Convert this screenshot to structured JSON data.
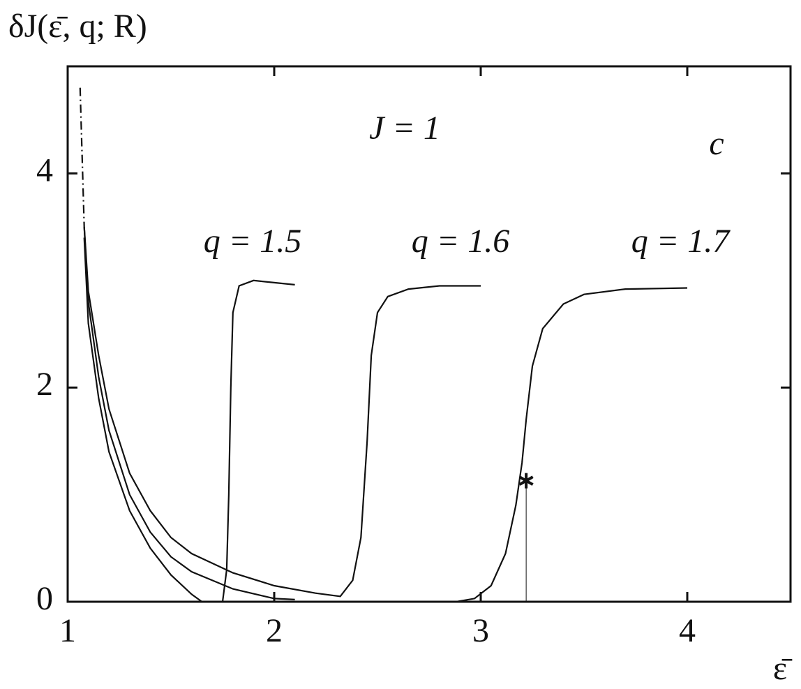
{
  "chart_data": {
    "type": "line",
    "ylabel": "δJ(ε̄, q; R)",
    "xlabel": "ε̄",
    "annotations": [
      "J = 1",
      "c",
      "q = 1.5",
      "q = 1.6",
      "q = 1.7"
    ],
    "xlim": [
      1,
      4.5
    ],
    "ylim": [
      0,
      5
    ],
    "xticks": [
      1,
      2,
      3,
      4
    ],
    "yticks": [
      0,
      2,
      4
    ],
    "color": "#111111",
    "series": [
      {
        "x": [
          1.08,
          1.1,
          1.15,
          1.2,
          1.3,
          1.4,
          1.5,
          1.6,
          1.65,
          null,
          1.75,
          1.77,
          1.78,
          1.79,
          1.8,
          1.83,
          1.9,
          2.0,
          2.1
        ],
        "values": [
          3.4,
          2.6,
          1.9,
          1.4,
          0.85,
          0.5,
          0.25,
          0.07,
          0.0,
          null,
          0.0,
          0.3,
          1.0,
          2.0,
          2.7,
          2.95,
          3.0,
          2.98,
          2.96
        ]
      },
      {
        "x": [
          1.08,
          1.1,
          1.15,
          1.2,
          1.3,
          1.4,
          1.5,
          1.6,
          1.8,
          2.0,
          2.2,
          2.32,
          2.38,
          2.42,
          2.45,
          2.47,
          2.5,
          2.55,
          2.65,
          2.8,
          3.0
        ],
        "values": [
          3.5,
          2.9,
          2.3,
          1.8,
          1.2,
          0.85,
          0.6,
          0.45,
          0.27,
          0.15,
          0.08,
          0.05,
          0.2,
          0.6,
          1.5,
          2.3,
          2.7,
          2.85,
          2.92,
          2.95,
          2.95
        ]
      },
      {
        "x": [
          1.08,
          1.1,
          1.15,
          1.2,
          1.3,
          1.4,
          1.5,
          1.6,
          1.8,
          2.0,
          2.1,
          null,
          2.88,
          2.97,
          3.05,
          3.12,
          3.17,
          3.2,
          3.22,
          3.25,
          3.3,
          3.4,
          3.5,
          3.7,
          4.0
        ],
        "values": [
          3.5,
          2.8,
          2.1,
          1.6,
          1.0,
          0.65,
          0.42,
          0.28,
          0.12,
          0.03,
          0.02,
          null,
          0.0,
          0.03,
          0.15,
          0.45,
          0.9,
          1.3,
          1.7,
          2.2,
          2.55,
          2.78,
          2.87,
          2.92,
          2.93
        ]
      },
      {
        "x": [
          1.06,
          1.08
        ],
        "values": [
          4.8,
          3.5
        ],
        "linestyle": "dashdot"
      }
    ],
    "marker": {
      "x": 3.22,
      "y": 1.13
    }
  }
}
